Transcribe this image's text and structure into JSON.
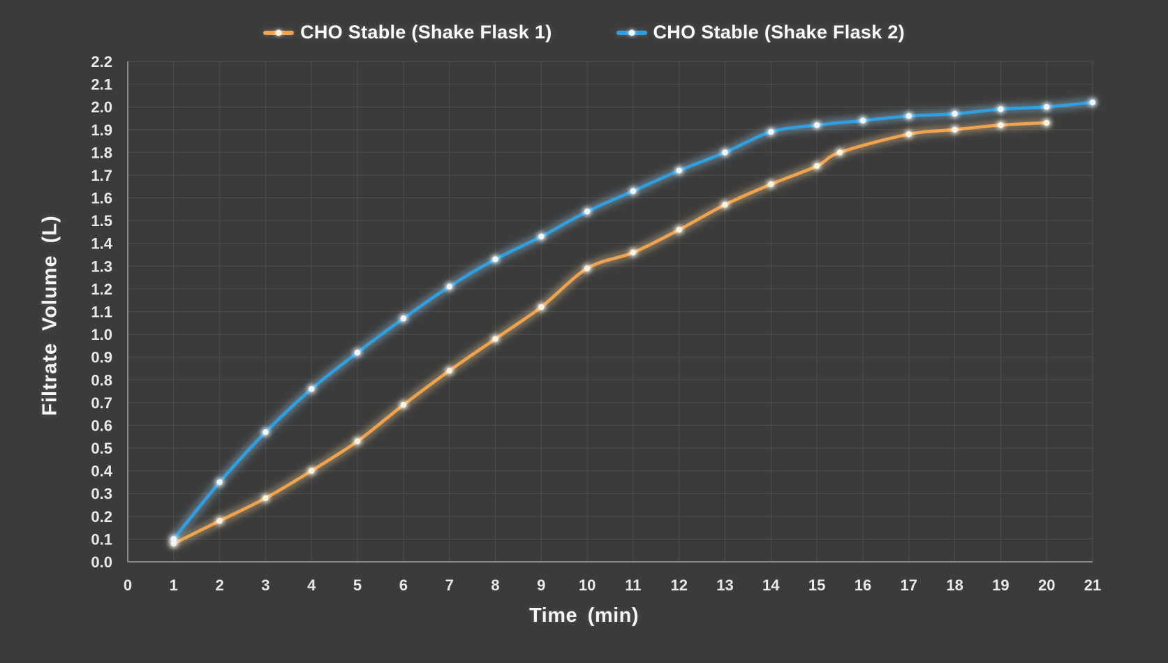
{
  "page": {
    "background": "#3b3b3b"
  },
  "chart_data": {
    "type": "line",
    "title": "",
    "xlabel": "Time (min)",
    "ylabel": "Filtrate Volume (L)",
    "xlim": [
      0,
      21
    ],
    "ylim": [
      0,
      2.2
    ],
    "grid": true,
    "legend_position": "top-center",
    "x_tick_labels": [
      "0",
      "1",
      "2",
      "3",
      "4",
      "5",
      "6",
      "7",
      "8",
      "9",
      "10",
      "11",
      "12",
      "13",
      "14",
      "15",
      "16",
      "17",
      "18",
      "19",
      "20",
      "21"
    ],
    "y_tick_labels": [
      "0.0",
      "0.1",
      "0.2",
      "0.3",
      "0.4",
      "0.5",
      "0.6",
      "0.7",
      "0.8",
      "0.9",
      "1.0",
      "1.1",
      "1.2",
      "1.3",
      "1.4",
      "1.5",
      "1.6",
      "1.7",
      "1.8",
      "1.9",
      "2.0",
      "2.1",
      "2.2"
    ],
    "series": [
      {
        "name": "CHO Stable (Shake Flask 1)",
        "color": "#f0a34e",
        "marker_color": "#fdf3dc",
        "glow_color": "#ffd9a0",
        "x": [
          1,
          2,
          3,
          4,
          5,
          6,
          7,
          8,
          9,
          10,
          11,
          12,
          13,
          14,
          15,
          15.5,
          17,
          18,
          19,
          20
        ],
        "y": [
          0.08,
          0.18,
          0.28,
          0.4,
          0.53,
          0.69,
          0.84,
          0.98,
          1.12,
          1.29,
          1.36,
          1.46,
          1.57,
          1.66,
          1.74,
          1.8,
          1.88,
          1.9,
          1.92,
          1.93
        ]
      },
      {
        "name": "CHO Stable (Shake Flask 2)",
        "color": "#2f9fe0",
        "marker_color": "#edf7ff",
        "glow_color": "#9fd6f7",
        "x": [
          1,
          2,
          3,
          4,
          5,
          6,
          7,
          8,
          9,
          10,
          11,
          12,
          13,
          14,
          15,
          16,
          17,
          18,
          19,
          20,
          21
        ],
        "y": [
          0.1,
          0.35,
          0.57,
          0.76,
          0.92,
          1.07,
          1.21,
          1.33,
          1.43,
          1.54,
          1.63,
          1.72,
          1.8,
          1.89,
          1.92,
          1.94,
          1.96,
          1.97,
          1.99,
          2.0,
          2.02
        ]
      }
    ],
    "colors": {
      "axis": "#8c8c8c",
      "grid": "#4f4f4f",
      "tick_text": "#e9e9e9",
      "title_text": "#f5f5f5"
    }
  }
}
